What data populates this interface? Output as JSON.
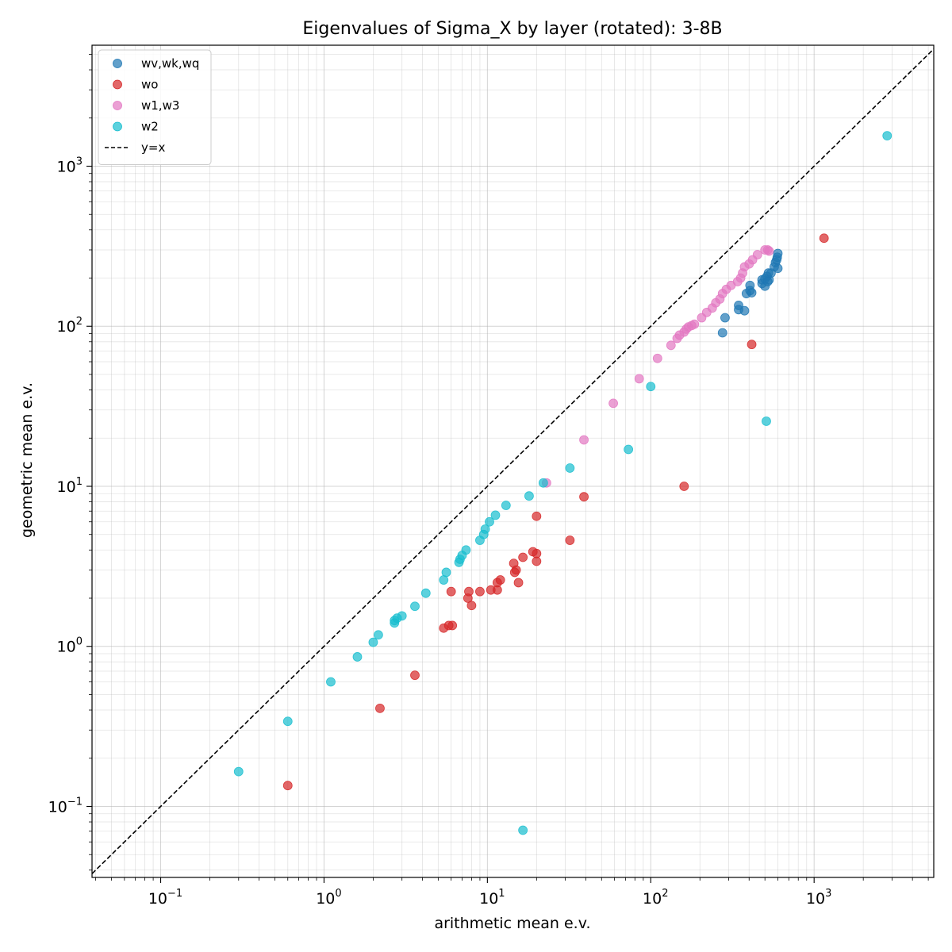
{
  "chart_data": {
    "type": "scatter",
    "title": "Eigenvalues of Sigma_X by layer (rotated): 3-8B",
    "xlabel": "arithmetic mean e.v.",
    "ylabel": "geometric mean e.v.",
    "xscale": "log",
    "yscale": "log",
    "xlim": [
      0.038,
      5400
    ],
    "ylim": [
      0.036,
      5700
    ],
    "grid": true,
    "legend_position": "top-left",
    "x_ticks": [
      {
        "base": "10",
        "exp": "−1",
        "value": 0.1
      },
      {
        "base": "10",
        "exp": "0",
        "value": 1
      },
      {
        "base": "10",
        "exp": "1",
        "value": 10
      },
      {
        "base": "10",
        "exp": "2",
        "value": 100
      },
      {
        "base": "10",
        "exp": "3",
        "value": 1000
      }
    ],
    "y_ticks": [
      {
        "base": "10",
        "exp": "−1",
        "value": 0.1
      },
      {
        "base": "10",
        "exp": "0",
        "value": 1
      },
      {
        "base": "10",
        "exp": "1",
        "value": 10
      },
      {
        "base": "10",
        "exp": "2",
        "value": 100
      },
      {
        "base": "10",
        "exp": "3",
        "value": 1000
      }
    ],
    "reference_line": {
      "name": "y=x",
      "color": "#000000",
      "style": "dashed"
    },
    "series": [
      {
        "name": "wv,wk,wq",
        "color": "#1f77b4",
        "points": [
          [
            275,
            91
          ],
          [
            285,
            113
          ],
          [
            345,
            135
          ],
          [
            345,
            127
          ],
          [
            375,
            125
          ],
          [
            385,
            160
          ],
          [
            405,
            180
          ],
          [
            405,
            167
          ],
          [
            415,
            162
          ],
          [
            480,
            195
          ],
          [
            480,
            185
          ],
          [
            500,
            178
          ],
          [
            515,
            205
          ],
          [
            525,
            215
          ],
          [
            530,
            195
          ],
          [
            545,
            215
          ],
          [
            570,
            235
          ],
          [
            580,
            250
          ],
          [
            590,
            260
          ],
          [
            595,
            270
          ],
          [
            600,
            285
          ],
          [
            600,
            230
          ],
          [
            500,
            198
          ],
          [
            520,
            190
          ]
        ]
      },
      {
        "name": "wo",
        "color": "#d62728",
        "points": [
          [
            1150,
            355
          ],
          [
            415,
            77
          ],
          [
            160,
            10
          ],
          [
            39,
            8.6
          ],
          [
            32,
            4.6
          ],
          [
            20,
            6.5
          ],
          [
            20,
            3.8
          ],
          [
            20,
            3.4
          ],
          [
            19,
            3.9
          ],
          [
            16.5,
            3.6
          ],
          [
            15.5,
            2.5
          ],
          [
            15,
            3.0
          ],
          [
            14.7,
            2.9
          ],
          [
            14.5,
            3.3
          ],
          [
            12,
            2.6
          ],
          [
            11.5,
            2.5
          ],
          [
            11.5,
            2.25
          ],
          [
            10.5,
            2.25
          ],
          [
            9,
            2.2
          ],
          [
            8,
            1.8
          ],
          [
            7.7,
            2.2
          ],
          [
            7.6,
            2.0
          ],
          [
            6,
            2.2
          ],
          [
            6.1,
            1.35
          ],
          [
            5.8,
            1.35
          ],
          [
            5.4,
            1.3
          ],
          [
            3.6,
            0.66
          ],
          [
            2.2,
            0.41
          ],
          [
            0.6,
            0.135
          ]
        ]
      },
      {
        "name": "w1,w3",
        "color": "#e377c2",
        "points": [
          [
            520,
            300
          ],
          [
            500,
            300
          ],
          [
            530,
            295
          ],
          [
            450,
            280
          ],
          [
            420,
            260
          ],
          [
            400,
            245
          ],
          [
            375,
            235
          ],
          [
            365,
            215
          ],
          [
            355,
            200
          ],
          [
            340,
            190
          ],
          [
            310,
            180
          ],
          [
            290,
            170
          ],
          [
            275,
            160
          ],
          [
            265,
            148
          ],
          [
            250,
            140
          ],
          [
            238,
            130
          ],
          [
            220,
            122
          ],
          [
            205,
            113
          ],
          [
            185,
            103
          ],
          [
            178,
            101
          ],
          [
            170,
            99
          ],
          [
            165,
            96
          ],
          [
            160,
            92
          ],
          [
            150,
            88
          ],
          [
            145,
            84
          ],
          [
            133,
            76
          ],
          [
            110,
            63
          ],
          [
            85,
            47
          ],
          [
            59,
            33
          ],
          [
            39,
            19.5
          ],
          [
            23,
            10.5
          ]
        ]
      },
      {
        "name": "w2",
        "color": "#17becf",
        "points": [
          [
            2800,
            1550
          ],
          [
            100,
            42
          ],
          [
            510,
            25.5
          ],
          [
            73,
            17
          ],
          [
            32,
            13
          ],
          [
            22,
            10.5
          ],
          [
            18,
            8.7
          ],
          [
            13,
            7.6
          ],
          [
            11.2,
            6.6
          ],
          [
            10.3,
            6.0
          ],
          [
            9.7,
            5.4
          ],
          [
            9.5,
            5.0
          ],
          [
            9,
            4.6
          ],
          [
            7.4,
            4.0
          ],
          [
            7.0,
            3.7
          ],
          [
            6.8,
            3.5
          ],
          [
            6.7,
            3.35
          ],
          [
            5.6,
            2.9
          ],
          [
            5.4,
            2.6
          ],
          [
            4.2,
            2.15
          ],
          [
            3.6,
            1.78
          ],
          [
            3.0,
            1.55
          ],
          [
            2.8,
            1.5
          ],
          [
            2.7,
            1.45
          ],
          [
            2.7,
            1.4
          ],
          [
            2.15,
            1.18
          ],
          [
            2.0,
            1.06
          ],
          [
            1.6,
            0.86
          ],
          [
            1.1,
            0.6
          ],
          [
            0.6,
            0.34
          ],
          [
            0.3,
            0.165
          ],
          [
            16.5,
            0.071
          ]
        ]
      }
    ]
  }
}
